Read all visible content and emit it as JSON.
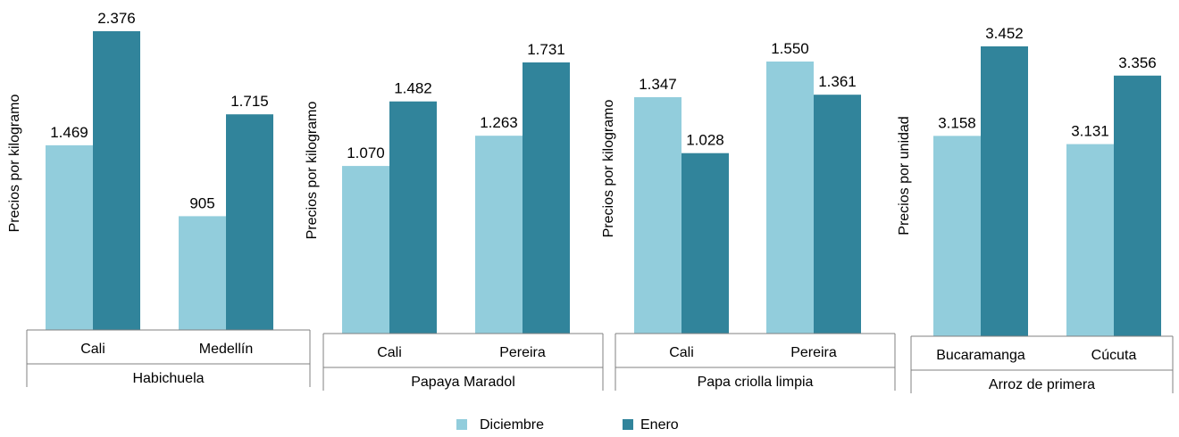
{
  "colors": {
    "diciembre": "#92CDDC",
    "enero": "#31849B",
    "axis": "#808080"
  },
  "legend": [
    {
      "label": "Diciembre",
      "color": "#92CDDC"
    },
    {
      "label": "Enero",
      "color": "#31849B"
    }
  ],
  "chart_data": [
    {
      "type": "bar",
      "group": "Habichuela",
      "ylabel": "Precios por kilogramo",
      "categories": [
        "Cali",
        "Medellín"
      ],
      "series": [
        {
          "name": "Diciembre",
          "values": [
            1469,
            905
          ],
          "labels": [
            "1.469",
            "905"
          ]
        },
        {
          "name": "Enero",
          "values": [
            2376,
            1715
          ],
          "labels": [
            "2.376",
            "1.715"
          ]
        }
      ]
    },
    {
      "type": "bar",
      "group": "Papaya Maradol",
      "ylabel": "Precios por kilogramo",
      "categories": [
        "Cali",
        "Pereira"
      ],
      "series": [
        {
          "name": "Diciembre",
          "values": [
            1070,
            1263
          ],
          "labels": [
            "1.070",
            "1.263"
          ]
        },
        {
          "name": "Enero",
          "values": [
            1482,
            1731
          ],
          "labels": [
            "1.482",
            "1.731"
          ]
        }
      ]
    },
    {
      "type": "bar",
      "group": "Papa criolla limpia",
      "ylabel": "Precios por kilogramo",
      "categories": [
        "Cali",
        "Pereira"
      ],
      "series": [
        {
          "name": "Diciembre",
          "values": [
            1347,
            1550
          ],
          "labels": [
            "1.347",
            "1.550"
          ]
        },
        {
          "name": "Enero",
          "values": [
            1028,
            1361
          ],
          "labels": [
            "1.028",
            "1.361"
          ]
        }
      ]
    },
    {
      "type": "bar",
      "group": "Arroz de primera",
      "ylabel": "Precios por unidad",
      "categories": [
        "Bucaramanga",
        "Cúcuta"
      ],
      "series": [
        {
          "name": "Diciembre",
          "values": [
            3158,
            3131
          ],
          "labels": [
            "3.158",
            "3.131"
          ]
        },
        {
          "name": "Enero",
          "values": [
            3452,
            3356
          ],
          "labels": [
            "3.452",
            "3.356"
          ]
        }
      ]
    }
  ]
}
